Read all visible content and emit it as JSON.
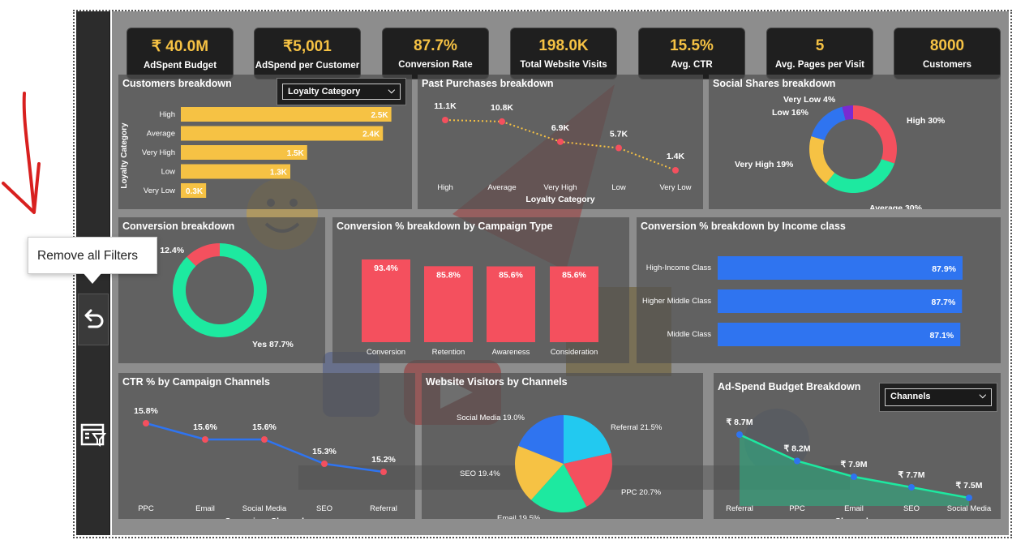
{
  "tooltip": {
    "text": "Remove all Filters"
  },
  "kpis": [
    {
      "value": "₹ 40.0M",
      "label": "AdSpent Budget"
    },
    {
      "value": "₹5,001",
      "label": "AdSpend per Customer"
    },
    {
      "value": "87.7%",
      "label": "Conversion Rate"
    },
    {
      "value": "198.0K",
      "label": "Total Website Visits"
    },
    {
      "value": "15.5%",
      "label": "Avg. CTR"
    },
    {
      "value": "5",
      "label": "Avg. Pages per Visit"
    },
    {
      "value": "8000",
      "label": "Customers"
    }
  ],
  "customers_breakdown": {
    "title": "Customers breakdown",
    "dropdown": "Loyalty Category",
    "axis_label": "Loyalty Category"
  },
  "past_purchases": {
    "title": "Past Purchases breakdown"
  },
  "social_shares": {
    "title": "Social Shares breakdown"
  },
  "conversion_breakdown": {
    "title": "Conversion breakdown"
  },
  "conv_campaign": {
    "title": "Conversion % breakdown by Campaign Type"
  },
  "conv_income": {
    "title": "Conversion % breakdown by Income class"
  },
  "ctr_channels": {
    "title": "CTR % by Campaign Channels"
  },
  "website_visitors": {
    "title": "Website Visitors by Channels"
  },
  "adspend": {
    "title": "Ad-Spend Budget Breakdown",
    "dropdown": "Channels"
  },
  "colors": {
    "accent": "#f6c244",
    "red": "#f4505e",
    "green": "#1de9a0",
    "blue": "#2f74f0",
    "panel": "#505050"
  },
  "chart_data": [
    {
      "type": "bar",
      "orientation": "horizontal",
      "ylabel": "Loyalty Category",
      "categories": [
        "High",
        "Average",
        "Very High",
        "Low",
        "Very Low"
      ],
      "values": [
        2500,
        2400,
        1500,
        1300,
        300
      ],
      "labels": [
        "2.5K",
        "2.4K",
        "1.5K",
        "1.3K",
        "0.3K"
      ]
    },
    {
      "type": "line",
      "xlabel": "Loyalty Category",
      "categories": [
        "High",
        "Average",
        "Very High",
        "Low",
        "Very Low"
      ],
      "values": [
        11100,
        10800,
        6900,
        5700,
        1400
      ],
      "labels": [
        "11.1K",
        "10.8K",
        "6.9K",
        "5.7K",
        "1.4K"
      ]
    },
    {
      "type": "pie",
      "style": "donut",
      "categories": [
        "High",
        "Average",
        "Very High",
        "Low",
        "Very Low"
      ],
      "values": [
        30,
        30,
        19,
        16,
        4
      ],
      "labels": [
        "High 30%",
        "Average 30%",
        "Very High 19%",
        "Low 16%",
        "Very Low 4%"
      ],
      "colors": [
        "#f4505e",
        "#1de9a0",
        "#f6c244",
        "#2f74f0",
        "#7a2bd1"
      ]
    },
    {
      "type": "pie",
      "style": "donut",
      "categories": [
        "Yes",
        "No"
      ],
      "values": [
        87.7,
        12.4
      ],
      "labels": [
        "Yes 87.7%",
        "o 12.4%"
      ],
      "colors": [
        "#1de9a0",
        "#f4505e"
      ]
    },
    {
      "type": "bar",
      "categories": [
        "Conversion",
        "Retention",
        "Awareness",
        "Consideration"
      ],
      "values": [
        93.4,
        85.8,
        85.6,
        85.6
      ],
      "labels": [
        "93.4%",
        "85.8%",
        "85.6%",
        "85.6%"
      ]
    },
    {
      "type": "bar",
      "orientation": "horizontal",
      "categories": [
        "High-Income Class",
        "Higher Middle Class",
        "Middle Class"
      ],
      "values": [
        87.9,
        87.7,
        87.1
      ],
      "labels": [
        "87.9%",
        "87.7%",
        "87.1%"
      ]
    },
    {
      "type": "line",
      "xlabel": "Campaign_Channel",
      "categories": [
        "PPC",
        "Email",
        "Social Media",
        "SEO",
        "Referral"
      ],
      "values": [
        15.8,
        15.6,
        15.6,
        15.3,
        15.2
      ],
      "labels": [
        "15.8%",
        "15.6%",
        "15.6%",
        "15.3%",
        "15.2%"
      ]
    },
    {
      "type": "pie",
      "categories": [
        "Referral",
        "PPC",
        "Email",
        "SEO",
        "Social Media"
      ],
      "values": [
        21.5,
        20.7,
        19.5,
        19.4,
        19.0
      ],
      "labels": [
        "Referral 21.5%",
        "PPC 20.7%",
        "Email 19.5%",
        "SEO 19.4%",
        "Social Media 19.0%"
      ],
      "colors": [
        "#22c9f0",
        "#f4505e",
        "#1de9a0",
        "#f6c244",
        "#2f74f0"
      ]
    },
    {
      "type": "area",
      "xlabel": "Channels",
      "categories": [
        "Referral",
        "PPC",
        "Email",
        "SEO",
        "Social Media"
      ],
      "values": [
        8.7,
        8.2,
        7.9,
        7.7,
        7.5
      ],
      "labels": [
        "₹ 8.7M",
        "₹ 8.2M",
        "₹ 7.9M",
        "₹ 7.7M",
        "₹ 7.5M"
      ]
    }
  ]
}
